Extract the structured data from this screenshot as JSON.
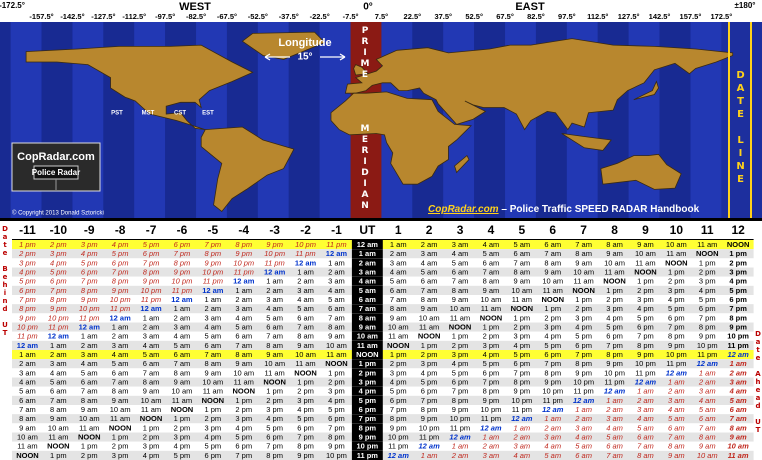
{
  "map": {
    "top": {
      "left": "-172.5°",
      "west": "WEST",
      "zero": "0°",
      "east": "EAST",
      "right": "±180°"
    },
    "longitudes": [
      "-157.5°",
      "-142.5°",
      "-127.5°",
      "-112.5°",
      "-97.5°",
      "-82.5°",
      "-67.5°",
      "-52.5°",
      "-37.5°",
      "-22.5°",
      "-7.5°",
      "7.5°",
      "22.5°",
      "37.5°",
      "52.5°",
      "67.5°",
      "82.5°",
      "97.5°",
      "112.5°",
      "127.5°",
      "142.5°",
      "157.5°",
      "172.5°"
    ],
    "longitude_title": "Longitude",
    "longitude_step": "15°",
    "prime": "PRIME",
    "meridian": "MERIDIAN",
    "date_line": "DATE LINE",
    "zones": [
      "PST",
      "MST",
      "CST",
      "EST"
    ],
    "logo": {
      "name": "CopRadar.com",
      "sub": "Police Radar"
    },
    "copyright": "© Copyright 2013 Donald Sztoricki",
    "brand": "CopRadar.com",
    "tagline": " – Police Traffic SPEED RADAR Handbook"
  },
  "table": {
    "header": [
      "-11",
      "-10",
      "-9",
      "-8",
      "-7",
      "-6",
      "-5",
      "-4",
      "-3",
      "-2",
      "-1",
      "UT",
      "1",
      "2",
      "3",
      "4",
      "5",
      "6",
      "7",
      "8",
      "9",
      "10",
      "11",
      "12"
    ],
    "left_label": "Date Behind UT",
    "right_label": "Date Ahead UT",
    "rows": [
      [
        "1 pm",
        "2 pm",
        "3 pm",
        "4 pm",
        "5 pm",
        "6 pm",
        "7 pm",
        "8 pm",
        "9 pm",
        "10 pm",
        "11 pm",
        "12 am",
        "1 am",
        "2 am",
        "3 am",
        "4 am",
        "5 am",
        "6 am",
        "7 am",
        "8 am",
        "9 am",
        "10 am",
        "11 am",
        "NOON"
      ],
      [
        "2 pm",
        "3 pm",
        "4 pm",
        "5 pm",
        "6 pm",
        "7 pm",
        "8 pm",
        "9 pm",
        "10 pm",
        "11 pm",
        "12 am",
        "1 am",
        "2 am",
        "3 am",
        "4 am",
        "5 am",
        "6 am",
        "7 am",
        "8 am",
        "9 am",
        "10 am",
        "11 am",
        "NOON",
        "1 pm"
      ],
      [
        "3 pm",
        "4 pm",
        "5 pm",
        "6 pm",
        "7 pm",
        "8 pm",
        "9 pm",
        "10 pm",
        "11 pm",
        "12 am",
        "1 am",
        "2 am",
        "3 am",
        "4 am",
        "5 am",
        "6 am",
        "7 am",
        "8 am",
        "9 am",
        "10 am",
        "11 am",
        "NOON",
        "1 pm",
        "2 pm"
      ],
      [
        "4 pm",
        "5 pm",
        "6 pm",
        "7 pm",
        "8 pm",
        "9 pm",
        "10 pm",
        "11 pm",
        "12 am",
        "1 am",
        "2 am",
        "3 am",
        "4 am",
        "5 am",
        "6 am",
        "7 am",
        "8 am",
        "9 am",
        "10 am",
        "11 am",
        "NOON",
        "1 pm",
        "2 pm",
        "3 pm"
      ],
      [
        "5 pm",
        "6 pm",
        "7 pm",
        "8 pm",
        "9 pm",
        "10 pm",
        "11 pm",
        "12 am",
        "1 am",
        "2 am",
        "3 am",
        "4 am",
        "5 am",
        "6 am",
        "7 am",
        "8 am",
        "9 am",
        "10 am",
        "11 am",
        "NOON",
        "1 pm",
        "2 pm",
        "3 pm",
        "4 pm"
      ],
      [
        "6 pm",
        "7 pm",
        "8 pm",
        "9 pm",
        "10 pm",
        "11 pm",
        "12 am",
        "1 am",
        "2 am",
        "3 am",
        "4 am",
        "5 am",
        "6 am",
        "7 am",
        "8 am",
        "9 am",
        "10 am",
        "11 am",
        "NOON",
        "1 pm",
        "2 pm",
        "3 pm",
        "4 pm",
        "5 pm"
      ],
      [
        "7 pm",
        "8 pm",
        "9 pm",
        "10 pm",
        "11 pm",
        "12 am",
        "1 am",
        "2 am",
        "3 am",
        "4 am",
        "5 am",
        "6 am",
        "7 am",
        "8 am",
        "9 am",
        "10 am",
        "11 am",
        "NOON",
        "1 pm",
        "2 pm",
        "3 pm",
        "4 pm",
        "5 pm",
        "6 pm"
      ],
      [
        "8 pm",
        "9 pm",
        "10 pm",
        "11 pm",
        "12 am",
        "1 am",
        "2 am",
        "3 am",
        "4 am",
        "5 am",
        "6 am",
        "7 am",
        "8 am",
        "9 am",
        "10 am",
        "11 am",
        "NOON",
        "1 pm",
        "2 pm",
        "3 pm",
        "4 pm",
        "5 pm",
        "6 pm",
        "7 pm"
      ],
      [
        "9 pm",
        "10 pm",
        "11 pm",
        "12 am",
        "1 am",
        "2 am",
        "3 am",
        "4 am",
        "5 am",
        "6 am",
        "7 am",
        "8 am",
        "9 am",
        "10 am",
        "11 am",
        "NOON",
        "1 pm",
        "2 pm",
        "3 pm",
        "4 pm",
        "5 pm",
        "6 pm",
        "7 pm",
        "8 pm"
      ],
      [
        "10 pm",
        "11 pm",
        "12 am",
        "1 am",
        "2 am",
        "3 am",
        "4 am",
        "5 am",
        "6 am",
        "7 am",
        "8 am",
        "9 am",
        "10 am",
        "11 am",
        "NOON",
        "1 pm",
        "2 pm",
        "3 pm",
        "4 pm",
        "5 pm",
        "6 pm",
        "7 pm",
        "8 pm",
        "9 pm"
      ],
      [
        "11 pm",
        "12 am",
        "1 am",
        "2 am",
        "3 am",
        "4 am",
        "5 am",
        "6 am",
        "7 am",
        "8 am",
        "9 am",
        "10 am",
        "11 am",
        "NOON",
        "1 pm",
        "2 pm",
        "3 pm",
        "4 pm",
        "5 pm",
        "6 pm",
        "7 pm",
        "8 pm",
        "9 pm",
        "10 pm"
      ],
      [
        "12 am",
        "1 am",
        "2 am",
        "3 am",
        "4 am",
        "5 am",
        "6 am",
        "7 am",
        "8 am",
        "9 am",
        "10 am",
        "11 am",
        "NOON",
        "1 pm",
        "2 pm",
        "3 pm",
        "4 pm",
        "5 pm",
        "6 pm",
        "7 pm",
        "8 pm",
        "9 pm",
        "10 pm",
        "11 pm"
      ],
      [
        "1 am",
        "2 am",
        "3 am",
        "4 am",
        "5 am",
        "6 am",
        "7 am",
        "8 am",
        "9 am",
        "10 am",
        "11 am",
        "NOON",
        "1 pm",
        "2 pm",
        "3 pm",
        "4 pm",
        "5 pm",
        "6 pm",
        "7 pm",
        "8 pm",
        "9 pm",
        "10 pm",
        "11 pm",
        "12 am"
      ],
      [
        "2 am",
        "3 am",
        "4 am",
        "5 am",
        "6 am",
        "7 am",
        "8 am",
        "9 am",
        "10 am",
        "11 am",
        "NOON",
        "1 pm",
        "2 pm",
        "3 pm",
        "4 pm",
        "5 pm",
        "6 pm",
        "7 pm",
        "8 pm",
        "9 pm",
        "10 pm",
        "11 pm",
        "12 am",
        "1 am"
      ],
      [
        "3 am",
        "4 am",
        "5 am",
        "6 am",
        "7 am",
        "8 am",
        "9 am",
        "10 am",
        "11 am",
        "NOON",
        "1 pm",
        "2 pm",
        "3 pm",
        "4 pm",
        "5 pm",
        "6 pm",
        "7 pm",
        "8 pm",
        "9 pm",
        "10 pm",
        "11 pm",
        "12 am",
        "1 am",
        "2 am"
      ],
      [
        "4 am",
        "5 am",
        "6 am",
        "7 am",
        "8 am",
        "9 am",
        "10 am",
        "11 am",
        "NOON",
        "1 pm",
        "2 pm",
        "3 pm",
        "4 pm",
        "5 pm",
        "6 pm",
        "7 pm",
        "8 pm",
        "9 pm",
        "10 pm",
        "11 pm",
        "12 am",
        "1 am",
        "2 am",
        "3 am"
      ],
      [
        "5 am",
        "6 am",
        "7 am",
        "8 am",
        "9 am",
        "10 am",
        "11 am",
        "NOON",
        "1 pm",
        "2 pm",
        "3 pm",
        "4 pm",
        "5 pm",
        "6 pm",
        "7 pm",
        "8 pm",
        "9 pm",
        "10 pm",
        "11 pm",
        "12 am",
        "1 am",
        "2 am",
        "3 am",
        "4 am"
      ],
      [
        "6 am",
        "7 am",
        "8 am",
        "9 am",
        "10 am",
        "11 am",
        "NOON",
        "1 pm",
        "2 pm",
        "3 pm",
        "4 pm",
        "5 pm",
        "6 pm",
        "7 pm",
        "8 pm",
        "9 pm",
        "10 pm",
        "11 pm",
        "12 am",
        "1 am",
        "2 am",
        "3 am",
        "4 am",
        "5 am"
      ],
      [
        "7 am",
        "8 am",
        "9 am",
        "10 am",
        "11 am",
        "NOON",
        "1 pm",
        "2 pm",
        "3 pm",
        "4 pm",
        "5 pm",
        "6 pm",
        "7 pm",
        "8 pm",
        "9 pm",
        "10 pm",
        "11 pm",
        "12 am",
        "1 am",
        "2 am",
        "3 am",
        "4 am",
        "5 am",
        "6 am"
      ],
      [
        "8 am",
        "9 am",
        "10 am",
        "11 am",
        "NOON",
        "1 pm",
        "2 pm",
        "3 pm",
        "4 pm",
        "5 pm",
        "6 pm",
        "7 pm",
        "8 pm",
        "9 pm",
        "10 pm",
        "11 pm",
        "12 am",
        "1 am",
        "2 am",
        "3 am",
        "4 am",
        "5 am",
        "6 am",
        "7 am"
      ],
      [
        "9 am",
        "10 am",
        "11 am",
        "NOON",
        "1 pm",
        "2 pm",
        "3 pm",
        "4 pm",
        "5 pm",
        "6 pm",
        "7 pm",
        "8 pm",
        "9 pm",
        "10 pm",
        "11 pm",
        "12 am",
        "1 am",
        "2 am",
        "3 am",
        "4 am",
        "5 am",
        "6 am",
        "7 am",
        "8 am"
      ],
      [
        "10 am",
        "11 am",
        "NOON",
        "1 pm",
        "2 pm",
        "3 pm",
        "4 pm",
        "5 pm",
        "6 pm",
        "7 pm",
        "8 pm",
        "9 pm",
        "10 pm",
        "11 pm",
        "12 am",
        "1 am",
        "2 am",
        "3 am",
        "4 am",
        "5 am",
        "6 am",
        "7 am",
        "8 am",
        "9 am"
      ],
      [
        "11 am",
        "NOON",
        "1 pm",
        "2 pm",
        "3 pm",
        "4 pm",
        "5 pm",
        "6 pm",
        "7 pm",
        "8 pm",
        "9 pm",
        "10 pm",
        "11 pm",
        "12 am",
        "1 am",
        "2 am",
        "3 am",
        "4 am",
        "5 am",
        "6 am",
        "7 am",
        "8 am",
        "9 am",
        "10 am"
      ],
      [
        "NOON",
        "1 pm",
        "2 pm",
        "3 pm",
        "4 pm",
        "5 pm",
        "6 pm",
        "7 pm",
        "8 pm",
        "9 pm",
        "10 pm",
        "11 pm",
        "12 am",
        "1 am",
        "2 am",
        "3 am",
        "4 am",
        "5 am",
        "6 am",
        "7 am",
        "8 am",
        "9 am",
        "10 am",
        "11 am"
      ]
    ]
  }
}
